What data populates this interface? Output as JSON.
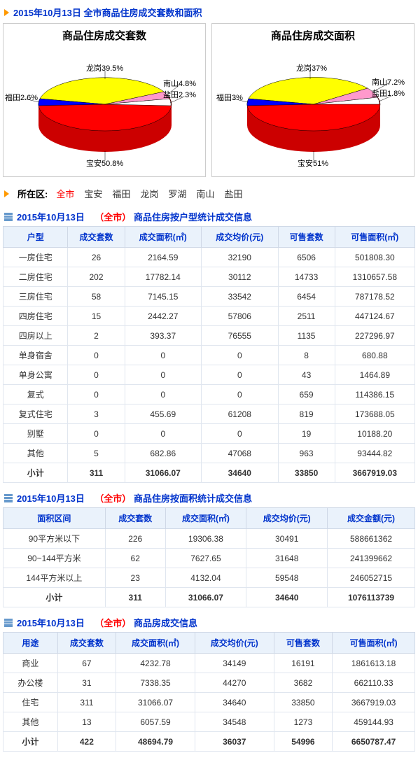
{
  "colors": {
    "title_text": "#0033cc",
    "accent_arrow": "#ff9900",
    "scope_text": "#ff0000",
    "th_bg": "#eaf2fb",
    "th_border": "#cfd8e6",
    "td_border": "#e0e6ef",
    "chart_border": "#cccccc",
    "pie_side": "#cc0000",
    "pie_rim": "#0000cc"
  },
  "header": {
    "date": "2015年10月13日",
    "title_suffix": "全市商品住房成交套数和面积"
  },
  "chart1": {
    "type": "pie-3d",
    "title": "商品住房成交套数",
    "slices": [
      {
        "label": "龙岗",
        "pct": "39.5%",
        "color": "#ffff00"
      },
      {
        "label": "南山",
        "pct": "4.8%",
        "color": "#ff99cc"
      },
      {
        "label": "盐田",
        "pct": "2.3%",
        "color": "#ffffff"
      },
      {
        "label": "宝安",
        "pct": "50.8%",
        "color": "#ff0000"
      },
      {
        "label": "福田",
        "pct": "2.6%",
        "color": "#0000ff"
      }
    ]
  },
  "chart2": {
    "type": "pie-3d",
    "title": "商品住房成交面积",
    "slices": [
      {
        "label": "龙岗",
        "pct": "37%",
        "color": "#ffff00"
      },
      {
        "label": "南山",
        "pct": "7.2%",
        "color": "#ff99cc"
      },
      {
        "label": "盐田",
        "pct": "1.8%",
        "color": "#ffffff"
      },
      {
        "label": "宝安",
        "pct": "51%",
        "color": "#ff0000"
      },
      {
        "label": "福田",
        "pct": "3%",
        "color": "#0000ff"
      }
    ]
  },
  "regions": {
    "label": "所在区:",
    "items": [
      "全市",
      "宝安",
      "福田",
      "龙岗",
      "罗湖",
      "南山",
      "盐田"
    ],
    "active": "全市"
  },
  "table1": {
    "title_prefix": "2015年10月13日",
    "scope": "（全市）",
    "title_suffix": "商品住房按户型统计成交信息",
    "columns": [
      "户型",
      "成交套数",
      "成交面积(㎡)",
      "成交均价(元)",
      "可售套数",
      "可售面积(㎡)"
    ],
    "rows": [
      [
        "一房住宅",
        "26",
        "2164.59",
        "32190",
        "6506",
        "501808.30"
      ],
      [
        "二房住宅",
        "202",
        "17782.14",
        "30112",
        "14733",
        "1310657.58"
      ],
      [
        "三房住宅",
        "58",
        "7145.15",
        "33542",
        "6454",
        "787178.52"
      ],
      [
        "四房住宅",
        "15",
        "2442.27",
        "57806",
        "2511",
        "447124.67"
      ],
      [
        "四房以上",
        "2",
        "393.37",
        "76555",
        "1135",
        "227296.97"
      ],
      [
        "单身宿舍",
        "0",
        "0",
        "0",
        "8",
        "680.88"
      ],
      [
        "单身公寓",
        "0",
        "0",
        "0",
        "43",
        "1464.89"
      ],
      [
        "复式",
        "0",
        "0",
        "0",
        "659",
        "114386.15"
      ],
      [
        "复式住宅",
        "3",
        "455.69",
        "61208",
        "819",
        "173688.05"
      ],
      [
        "别墅",
        "0",
        "0",
        "0",
        "19",
        "10188.20"
      ],
      [
        "其他",
        "5",
        "682.86",
        "47068",
        "963",
        "93444.82"
      ]
    ],
    "total": [
      "小计",
      "311",
      "31066.07",
      "34640",
      "33850",
      "3667919.03"
    ]
  },
  "table2": {
    "title_prefix": "2015年10月13日",
    "scope": "（全市）",
    "title_suffix": "商品住房按面积统计成交信息",
    "columns": [
      "面积区间",
      "成交套数",
      "成交面积(㎡)",
      "成交均价(元)",
      "成交金额(元)"
    ],
    "rows": [
      [
        "90平方米以下",
        "226",
        "19306.38",
        "30491",
        "588661362"
      ],
      [
        "90~144平方米",
        "62",
        "7627.65",
        "31648",
        "241399662"
      ],
      [
        "144平方米以上",
        "23",
        "4132.04",
        "59548",
        "246052715"
      ]
    ],
    "total": [
      "小计",
      "311",
      "31066.07",
      "34640",
      "1076113739"
    ]
  },
  "table3": {
    "title_prefix": "2015年10月13日",
    "scope": "（全市）",
    "title_suffix": "商品房成交信息",
    "columns": [
      "用途",
      "成交套数",
      "成交面积(㎡)",
      "成交均价(元)",
      "可售套数",
      "可售面积(㎡)"
    ],
    "rows": [
      [
        "商业",
        "67",
        "4232.78",
        "34149",
        "16191",
        "1861613.18"
      ],
      [
        "办公楼",
        "31",
        "7338.35",
        "44270",
        "3682",
        "662110.33"
      ],
      [
        "住宅",
        "311",
        "31066.07",
        "34640",
        "33850",
        "3667919.03"
      ],
      [
        "其他",
        "13",
        "6057.59",
        "34548",
        "1273",
        "459144.93"
      ]
    ],
    "total": [
      "小计",
      "422",
      "48694.79",
      "36037",
      "54996",
      "6650787.47"
    ]
  }
}
